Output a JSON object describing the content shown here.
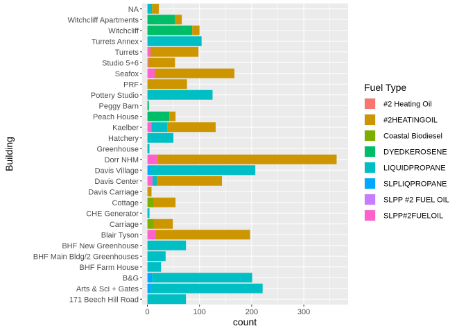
{
  "chart_data": {
    "type": "bar",
    "orientation": "horizontal",
    "stacked": true,
    "xlabel": "count",
    "ylabel": "Building",
    "xlim": [
      -10,
      385
    ],
    "xticks": [
      0,
      100,
      200,
      300
    ],
    "grid": true,
    "legend_title": "Fuel Type",
    "legend_position": "right",
    "categories": [
      "NA",
      "Witchcliff Apartments",
      "Witchcliff",
      "Turrets Annex",
      "Turrets",
      "Studio 5+6",
      "Seafox",
      "PRF",
      "Pottery Studio",
      "Peggy Barn",
      "Peach House",
      "Kaelber",
      "Hatchery",
      "Greenhouse",
      "Dorr NHM",
      "Davis Village",
      "Davis Center",
      "Davis Carriage",
      "Cottage",
      "CHE Generator",
      "Carriage",
      "Blair Tyson",
      "BHF New Greenhouse",
      "BHF Main Bldg/2 Greenhouses",
      "BHF Farm House",
      "B&G",
      "Arts & Sci + Gates",
      "171 Beech Hill Road"
    ],
    "series": [
      {
        "name": "#2 Heating Oil",
        "color": "#F8766D",
        "values": [
          0,
          0,
          0,
          0,
          0,
          0,
          0,
          0,
          0,
          0,
          0,
          0,
          0,
          0,
          0,
          0,
          0,
          0,
          0,
          0,
          0,
          0,
          0,
          0,
          0,
          0,
          0,
          0
        ]
      },
      {
        "name": "#2HEATINGOIL",
        "color": "#CD9600",
        "values": [
          13,
          13,
          14,
          0,
          92,
          51,
          153,
          76,
          0,
          0,
          12,
          93,
          0,
          0,
          344,
          0,
          125,
          8,
          42,
          0,
          37,
          181,
          0,
          0,
          0,
          0,
          0,
          0
        ]
      },
      {
        "name": "Coastal Biodiesel",
        "color": "#7CAE00",
        "values": [
          0,
          0,
          0,
          0,
          0,
          0,
          0,
          0,
          0,
          0,
          0,
          0,
          0,
          0,
          0,
          0,
          0,
          0,
          12,
          0,
          12,
          0,
          0,
          0,
          0,
          0,
          0,
          0
        ]
      },
      {
        "name": "DYEDKEROSENE",
        "color": "#00BE67",
        "values": [
          0,
          53,
          86,
          0,
          0,
          0,
          0,
          0,
          0,
          3,
          42,
          0,
          0,
          0,
          0,
          0,
          0,
          0,
          0,
          0,
          0,
          0,
          0,
          0,
          0,
          0,
          0,
          0
        ]
      },
      {
        "name": "LIQUIDPROPANE",
        "color": "#00BFC4",
        "values": [
          9,
          0,
          0,
          104,
          0,
          0,
          0,
          0,
          125,
          0,
          0,
          30,
          50,
          4,
          0,
          201,
          8,
          0,
          0,
          4,
          0,
          0,
          74,
          35,
          26,
          192,
          214,
          74
        ]
      },
      {
        "name": "SLPLIQPROPANE",
        "color": "#00A9FF",
        "values": [
          0,
          0,
          0,
          0,
          0,
          0,
          0,
          0,
          0,
          0,
          0,
          0,
          0,
          0,
          0,
          6,
          0,
          0,
          0,
          0,
          0,
          0,
          0,
          0,
          0,
          9,
          7,
          0
        ]
      },
      {
        "name": "SLPP #2 FUEL OIL",
        "color": "#C77CFF",
        "values": [
          0,
          0,
          0,
          0,
          0,
          0,
          0,
          0,
          0,
          0,
          0,
          0,
          0,
          0,
          0,
          0,
          0,
          0,
          0,
          0,
          0,
          0,
          0,
          0,
          0,
          0,
          0,
          0
        ]
      },
      {
        "name": "SLPP#2FUELOIL",
        "color": "#FF61CC",
        "values": [
          0,
          0,
          0,
          0,
          6,
          2,
          14,
          0,
          0,
          0,
          0,
          8,
          0,
          0,
          19,
          0,
          10,
          0,
          0,
          0,
          0,
          16,
          0,
          0,
          0,
          0,
          0,
          0
        ]
      }
    ]
  }
}
